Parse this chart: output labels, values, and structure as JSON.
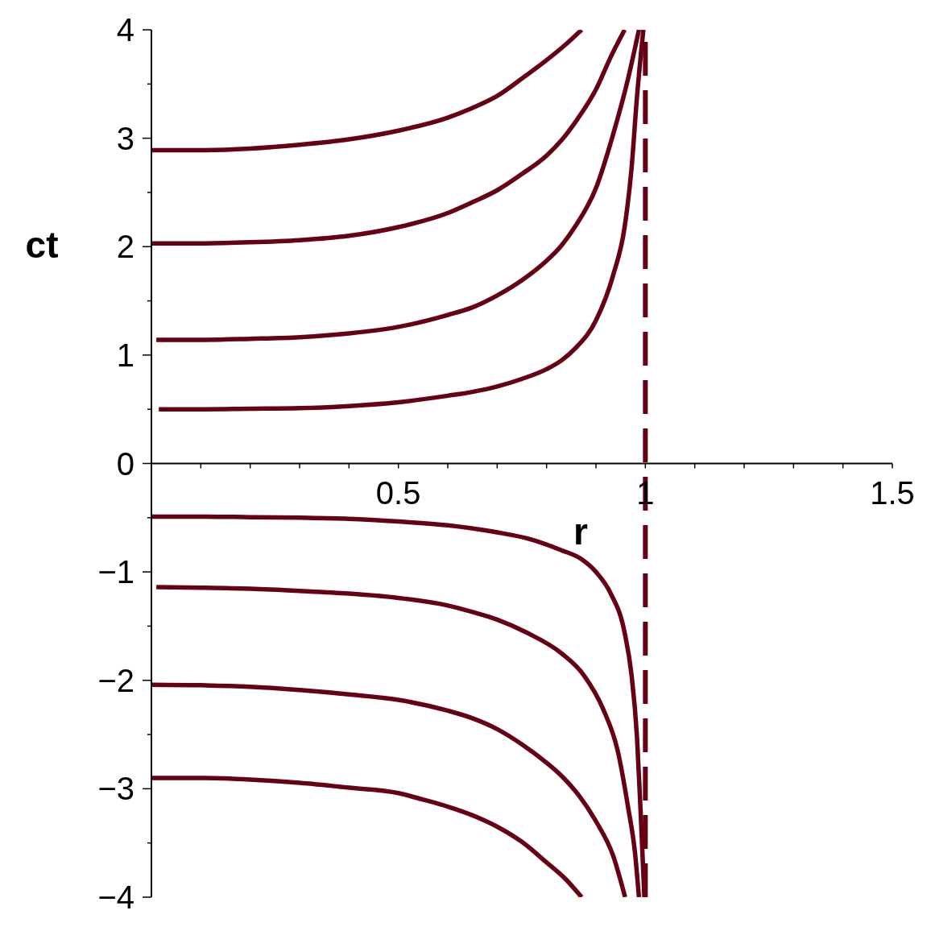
{
  "chart_data": {
    "type": "line",
    "xlabel": "r",
    "ylabel": "ct",
    "xlim": [
      0,
      1.5
    ],
    "ylim": [
      -4,
      4
    ],
    "marker": "none",
    "xticks": [
      {
        "value": 0.1,
        "label": null
      },
      {
        "value": 0.2,
        "label": null
      },
      {
        "value": 0.3,
        "label": null
      },
      {
        "value": 0.4,
        "label": null
      },
      0.5,
      {
        "value": 0.6,
        "label": null
      },
      {
        "value": 0.7,
        "label": null
      },
      {
        "value": 0.8,
        "label": null
      },
      {
        "value": 0.9,
        "label": null
      },
      1,
      {
        "value": 1.1,
        "label": null
      },
      {
        "value": 1.2,
        "label": null
      },
      {
        "value": 1.3,
        "label": null
      },
      {
        "value": 1.4,
        "label": null
      },
      1.5
    ],
    "yticks": [
      {
        "value": -4,
        "label": "−4"
      },
      {
        "value": -3.5,
        "label": null
      },
      {
        "value": -3,
        "label": "−3"
      },
      {
        "value": -2.5,
        "label": null
      },
      {
        "value": -2,
        "label": "−2"
      },
      {
        "value": -1.5,
        "label": null
      },
      {
        "value": -1,
        "label": "−1"
      },
      {
        "value": -0.5,
        "label": null
      },
      0,
      {
        "value": 0.5,
        "label": null
      },
      1,
      {
        "value": 1.5,
        "label": null
      },
      2,
      {
        "value": 2.5,
        "label": null
      },
      3,
      {
        "value": 3.5,
        "label": null
      },
      4
    ],
    "series": [
      {
        "color": "#650015",
        "x": [
          0,
          0.1,
          0.2,
          0.3,
          0.4,
          0.5,
          0.6,
          0.65,
          0.7,
          0.75,
          0.8,
          0.84,
          0.871
        ],
        "values": [
          2.89,
          2.89,
          2.905,
          2.94,
          2.99,
          3.07,
          3.19,
          3.28,
          3.39,
          3.55,
          3.72,
          3.87,
          4.0
        ]
      },
      {
        "color": "#650015",
        "x": [
          0,
          0.1,
          0.2,
          0.3,
          0.4,
          0.5,
          0.6,
          0.65,
          0.7,
          0.75,
          0.8,
          0.83,
          0.86,
          0.9,
          0.93,
          0.958
        ],
        "values": [
          2.03,
          2.03,
          2.04,
          2.06,
          2.1,
          2.18,
          2.31,
          2.41,
          2.52,
          2.67,
          2.84,
          2.98,
          3.16,
          3.45,
          3.75,
          4.0
        ]
      },
      {
        "color": "#650015",
        "x": [
          0.01,
          0.1,
          0.2,
          0.3,
          0.4,
          0.5,
          0.6,
          0.65,
          0.7,
          0.75,
          0.8,
          0.83,
          0.86,
          0.9,
          0.935,
          0.965,
          0.987
        ],
        "values": [
          1.14,
          1.14,
          1.15,
          1.165,
          1.2,
          1.26,
          1.37,
          1.44,
          1.55,
          1.69,
          1.87,
          2.01,
          2.2,
          2.54,
          3.04,
          3.55,
          4.0
        ]
      },
      {
        "color": "#650015",
        "x": [
          0.015,
          0.1,
          0.2,
          0.3,
          0.4,
          0.5,
          0.6,
          0.65,
          0.7,
          0.75,
          0.8,
          0.83,
          0.86,
          0.9,
          0.935,
          0.958,
          0.972,
          0.983,
          0.996
        ],
        "values": [
          0.5,
          0.5,
          0.505,
          0.51,
          0.53,
          0.565,
          0.625,
          0.66,
          0.71,
          0.78,
          0.87,
          0.95,
          1.07,
          1.32,
          1.74,
          2.18,
          2.72,
          3.38,
          4.0
        ]
      },
      {
        "color": "#650015",
        "x": [
          0,
          0.1,
          0.2,
          0.3,
          0.4,
          0.5,
          0.6,
          0.7,
          0.76,
          0.83,
          0.87,
          0.9,
          0.93,
          0.958,
          0.972,
          0.983,
          0.99,
          0.998
        ],
        "values": [
          -0.49,
          -0.49,
          -0.495,
          -0.5,
          -0.51,
          -0.535,
          -0.57,
          -0.635,
          -0.69,
          -0.8,
          -0.88,
          -1.0,
          -1.2,
          -1.56,
          -1.95,
          -2.52,
          -3.17,
          -4.0
        ]
      },
      {
        "color": "#650015",
        "x": [
          0.01,
          0.1,
          0.2,
          0.3,
          0.4,
          0.5,
          0.6,
          0.65,
          0.7,
          0.76,
          0.83,
          0.875,
          0.915,
          0.944,
          0.965,
          0.979,
          0.987
        ],
        "values": [
          -1.14,
          -1.145,
          -1.155,
          -1.175,
          -1.2,
          -1.24,
          -1.31,
          -1.37,
          -1.44,
          -1.56,
          -1.75,
          -1.95,
          -2.27,
          -2.65,
          -3.17,
          -3.59,
          -4.0
        ]
      },
      {
        "color": "#650015",
        "x": [
          0,
          0.1,
          0.2,
          0.3,
          0.4,
          0.5,
          0.6,
          0.65,
          0.7,
          0.75,
          0.8,
          0.83,
          0.865,
          0.9,
          0.935,
          0.959
        ],
        "values": [
          -2.04,
          -2.045,
          -2.06,
          -2.09,
          -2.13,
          -2.18,
          -2.28,
          -2.35,
          -2.45,
          -2.59,
          -2.76,
          -2.88,
          -3.06,
          -3.3,
          -3.62,
          -4.0
        ]
      },
      {
        "color": "#650015",
        "x": [
          0,
          0.1,
          0.2,
          0.3,
          0.4,
          0.5,
          0.55,
          0.6,
          0.65,
          0.7,
          0.75,
          0.8,
          0.84,
          0.871
        ],
        "values": [
          -2.9,
          -2.9,
          -2.915,
          -2.945,
          -2.99,
          -3.04,
          -3.1,
          -3.165,
          -3.245,
          -3.35,
          -3.49,
          -3.68,
          -3.84,
          -4.0
        ]
      }
    ],
    "ref_lines": [
      {
        "axis": "x",
        "value": 1,
        "color": "#650015",
        "line_style": "dashed"
      }
    ]
  }
}
